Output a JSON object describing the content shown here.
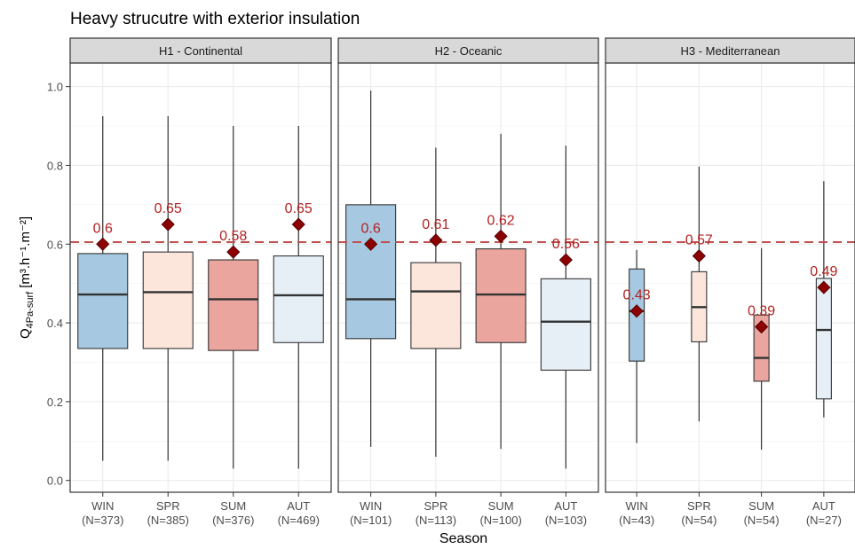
{
  "chart_data": {
    "type": "boxplot",
    "title": "Heavy strucutre with exterior insulation",
    "xlabel": "Season",
    "ylabel": {
      "main": "Q",
      "subscript": "4Pa-surf",
      "units": "[m³.h⁻¹.m⁻²]"
    },
    "ylim": [
      -0.03,
      1.06
    ],
    "yticks": [
      "0.0",
      "0.2",
      "0.4",
      "0.6",
      "0.8",
      "1.0"
    ],
    "ytick_values": [
      0.0,
      0.2,
      0.4,
      0.6,
      0.8,
      1.0
    ],
    "grid": true,
    "reference_line": {
      "value": 0.605,
      "style": "dashed",
      "color": "#C0504D"
    },
    "season_colors": {
      "WIN": "#A6C8E1",
      "SPR": "#FCE6DC",
      "SUM": "#E9A59E",
      "AUT": "#E6EEF6"
    },
    "mean_marker_color": "#8B0000",
    "label_color": "#B22222",
    "panels": [
      {
        "name": "H1 - Continental",
        "categories": [
          {
            "season": "WIN",
            "n": "(N=373)",
            "min": 0.05,
            "q1": 0.335,
            "median": 0.472,
            "q3": 0.576,
            "max": 0.925,
            "mean": 0.6,
            "mean_label": "0.6"
          },
          {
            "season": "SPR",
            "n": "(N=385)",
            "min": 0.05,
            "q1": 0.335,
            "median": 0.478,
            "q3": 0.58,
            "max": 0.925,
            "mean": 0.65,
            "mean_label": "0.65"
          },
          {
            "season": "SUM",
            "n": "(N=376)",
            "min": 0.03,
            "q1": 0.33,
            "median": 0.46,
            "q3": 0.56,
            "max": 0.9,
            "mean": 0.58,
            "mean_label": "0.58"
          },
          {
            "season": "AUT",
            "n": "(N=469)",
            "min": 0.03,
            "q1": 0.35,
            "median": 0.47,
            "q3": 0.57,
            "max": 0.9,
            "mean": 0.65,
            "mean_label": "0.65"
          }
        ]
      },
      {
        "name": "H2 - Oceanic",
        "categories": [
          {
            "season": "WIN",
            "n": "(N=101)",
            "min": 0.085,
            "q1": 0.36,
            "median": 0.46,
            "q3": 0.7,
            "max": 0.99,
            "mean": 0.6,
            "mean_label": "0.6"
          },
          {
            "season": "SPR",
            "n": "(N=113)",
            "min": 0.06,
            "q1": 0.335,
            "median": 0.48,
            "q3": 0.553,
            "max": 0.845,
            "mean": 0.61,
            "mean_label": "0.61"
          },
          {
            "season": "SUM",
            "n": "(N=100)",
            "min": 0.08,
            "q1": 0.35,
            "median": 0.472,
            "q3": 0.588,
            "max": 0.88,
            "mean": 0.62,
            "mean_label": "0.62"
          },
          {
            "season": "AUT",
            "n": "(N=103)",
            "min": 0.03,
            "q1": 0.28,
            "median": 0.403,
            "q3": 0.512,
            "max": 0.85,
            "mean": 0.56,
            "mean_label": "0.56"
          }
        ]
      },
      {
        "name": "H3 - Mediterranean",
        "categories": [
          {
            "season": "WIN",
            "n": "(N=43)",
            "min": 0.095,
            "q1": 0.303,
            "median": 0.43,
            "q3": 0.537,
            "max": 0.585,
            "mean": 0.43,
            "mean_label": "0.43"
          },
          {
            "season": "SPR",
            "n": "(N=54)",
            "min": 0.15,
            "q1": 0.352,
            "median": 0.44,
            "q3": 0.53,
            "max": 0.797,
            "mean": 0.57,
            "mean_label": "0.57"
          },
          {
            "season": "SUM",
            "n": "(N=54)",
            "min": 0.078,
            "q1": 0.252,
            "median": 0.311,
            "q3": 0.42,
            "max": 0.59,
            "mean": 0.39,
            "mean_label": "0.39"
          },
          {
            "season": "AUT",
            "n": "(N=27)",
            "min": 0.16,
            "q1": 0.207,
            "median": 0.382,
            "q3": 0.513,
            "max": 0.76,
            "mean": 0.49,
            "mean_label": "0.49"
          }
        ]
      }
    ]
  }
}
